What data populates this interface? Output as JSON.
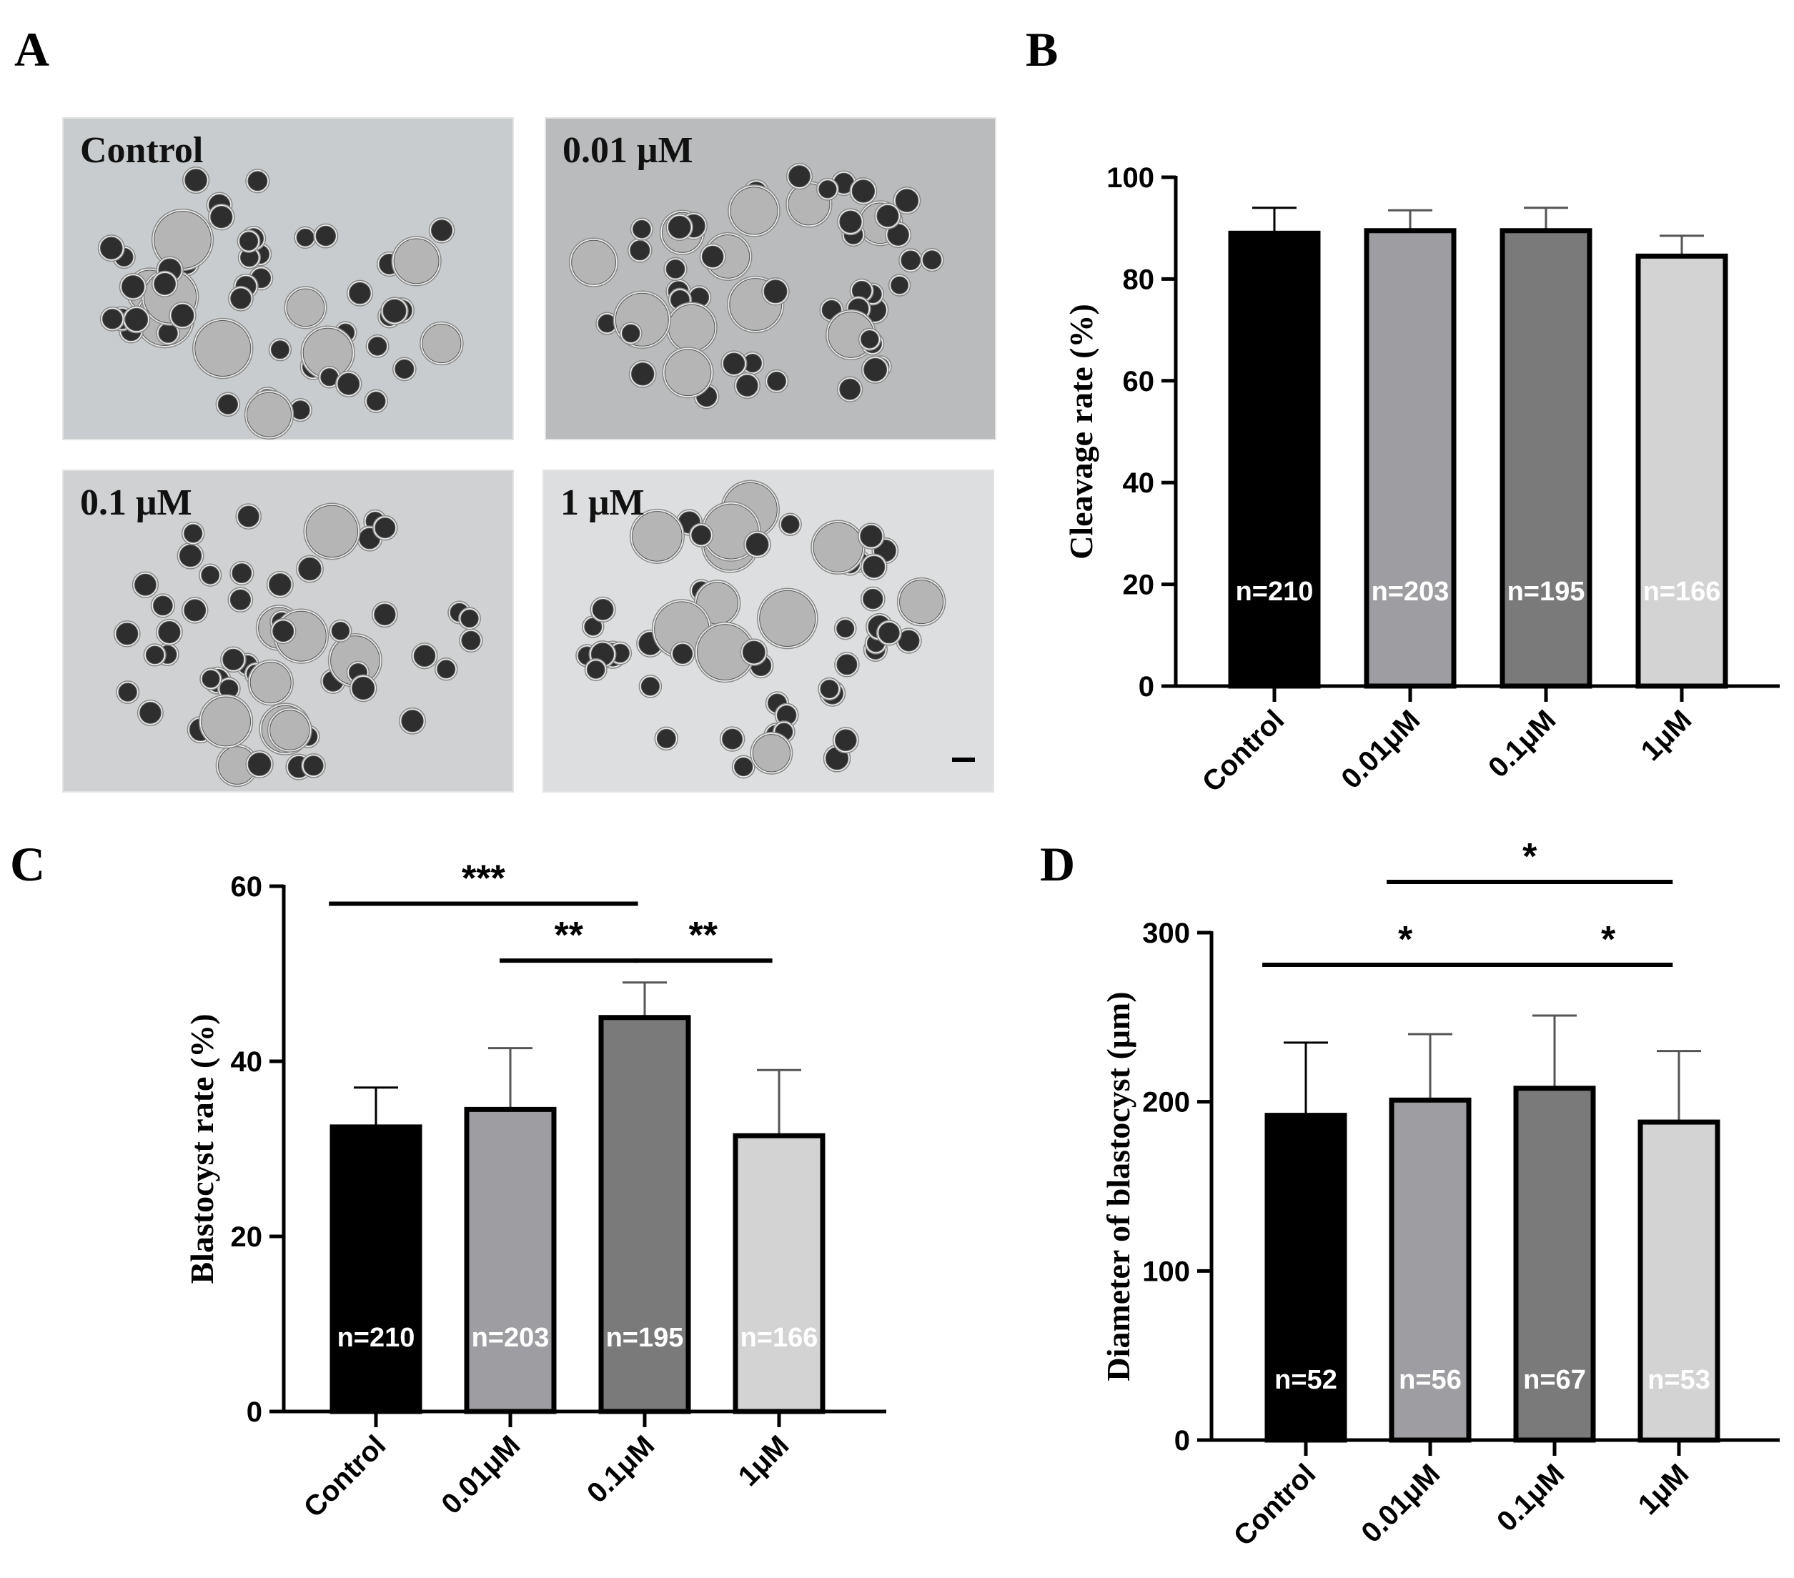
{
  "panels": {
    "a": "A",
    "b": "B",
    "c": "C",
    "d": "D"
  },
  "micrographs": [
    {
      "label": "Control",
      "bg": "#c9ccce"
    },
    {
      "label": "0.01 μM",
      "bg": "#b9bbbc"
    },
    {
      "label": "0.1 μM",
      "bg": "#cfd1d2"
    },
    {
      "label": "1 μM",
      "bg": "#dcdedf"
    }
  ],
  "chart_data": [
    {
      "id": "B",
      "type": "bar",
      "categories": [
        "Control",
        "0.01μM",
        "0.1μM",
        "1μM"
      ],
      "values": [
        89,
        89.5,
        89.5,
        84.5
      ],
      "errors": [
        5,
        4,
        4.5,
        4
      ],
      "n_labels": [
        "n=210",
        "n=203",
        "n=195",
        "n=166"
      ],
      "ylabel": "Cleavage rate (%)",
      "ylim": [
        0,
        100
      ],
      "yticks": [
        0,
        20,
        40,
        60,
        80,
        100
      ],
      "colors": [
        "#000000",
        "#9e9ea2",
        "#7a7a7a",
        "#d3d3d3"
      ],
      "significance": []
    },
    {
      "id": "C",
      "type": "bar",
      "categories": [
        "Control",
        "0.01μM",
        "0.1μM",
        "1μM"
      ],
      "values": [
        32.5,
        34.5,
        45,
        31.5
      ],
      "errors": [
        4.5,
        7,
        4,
        7.5
      ],
      "n_labels": [
        "n=210",
        "n=203",
        "n=195",
        "n=166"
      ],
      "ylabel": "Blastocyst rate (%)",
      "ylim": [
        0,
        60
      ],
      "yticks": [
        0,
        20,
        40,
        60
      ],
      "colors": [
        "#000000",
        "#9e9ea2",
        "#7a7a7a",
        "#d3d3d3"
      ],
      "significance": [
        {
          "from": 0,
          "to": 2,
          "label": "***",
          "y": 58
        },
        {
          "from": 1,
          "to": 2,
          "label": "**",
          "y": 51.5
        },
        {
          "from": 2,
          "to": 3,
          "label": "**",
          "y": 51.5
        }
      ]
    },
    {
      "id": "D",
      "type": "bar",
      "categories": [
        "Control",
        "0.01μM",
        "0.1μM",
        "1μM"
      ],
      "values": [
        192,
        201,
        208,
        188
      ],
      "errors": [
        43,
        39,
        43,
        42
      ],
      "n_labels": [
        "n=52",
        "n=56",
        "n=67",
        "n=53"
      ],
      "ylabel": "Diameter of blastocyst (μm)",
      "ylim": [
        0,
        300
      ],
      "yticks": [
        0,
        100,
        200,
        300
      ],
      "colors": [
        "#000000",
        "#9e9ea2",
        "#7a7a7a",
        "#d3d3d3"
      ],
      "significance": [
        {
          "from": 1,
          "to": 3,
          "label": "*",
          "y": 330
        },
        {
          "from": 0,
          "to": 2,
          "label": "*",
          "y": 281
        },
        {
          "from": 2,
          "to": 3,
          "label": "*",
          "y": 281
        }
      ]
    }
  ]
}
